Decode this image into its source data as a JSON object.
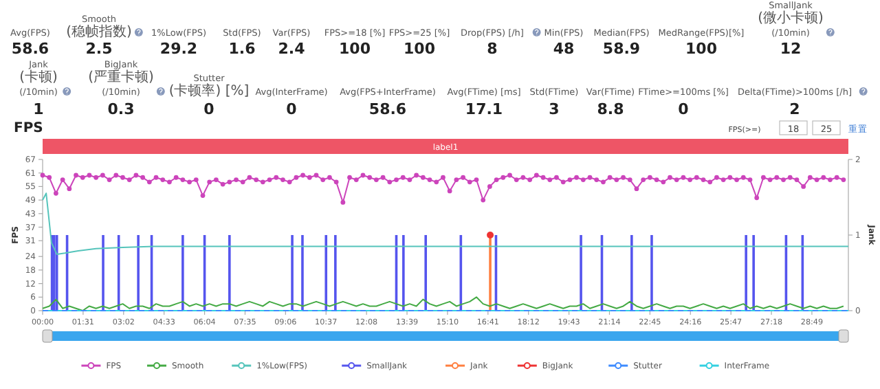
{
  "chart_data": [
    {
      "type": "other",
      "data_labels": true,
      "categories": [
        "Avg(FPS)",
        "Smooth(稳帧指数)",
        "1%Low(FPS)",
        "Std(FPS)",
        "Var(FPS)",
        "FPS>=18 [%]",
        "FPS>=25 [%]",
        "Drop(FPS) [/h]",
        "Min(FPS)",
        "Median(FPS)",
        "MedRange(FPS)[%]",
        "SmallJank(微小卡顿)\n(/10min)",
        "Jank(卡顿)\n(/10min)",
        "BigJank(严重卡顿)\n(/10min)",
        "Stutter(卡顿率) [%]",
        "Avg(InterFrame)",
        "Avg(FPS+InterFrame)",
        "Avg(FTime) [ms]",
        "Std(FTime)",
        "Var(FTime)",
        "FTime>=100ms [%]",
        "Delta(FTime)>100ms [/h]"
      ],
      "values": [
        58.6,
        2.5,
        29.2,
        1.6,
        2.4,
        100,
        100,
        8,
        48,
        58.9,
        100,
        12,
        1,
        0.3,
        0,
        0,
        58.6,
        17.1,
        3,
        8.8,
        0,
        2
      ]
    },
    {
      "type": "line",
      "title": "FPS",
      "ylabel": "FPS",
      "y2label": "Jank",
      "legend": "bottom",
      "annotations": [
        "label1",
        "FPS(>=)",
        "18",
        "25",
        "重置"
      ],
      "xlim": [
        0,
        1811
      ],
      "xticks": [
        {
          "value": 0,
          "label": "00:00"
        },
        {
          "value": 91,
          "label": "01:31"
        },
        {
          "value": 182,
          "label": "03:02"
        },
        {
          "value": 273,
          "label": "04:33"
        },
        {
          "value": 364,
          "label": "06:04"
        },
        {
          "value": 455,
          "label": "07:35"
        },
        {
          "value": 546,
          "label": "09:06"
        },
        {
          "value": 637,
          "label": "10:37"
        },
        {
          "value": 728,
          "label": "12:08"
        },
        {
          "value": 819,
          "label": "13:39"
        },
        {
          "value": 910,
          "label": "15:10"
        },
        {
          "value": 1001,
          "label": "16:41"
        },
        {
          "value": 1092,
          "label": "18:12"
        },
        {
          "value": 1183,
          "label": "19:43"
        },
        {
          "value": 1274,
          "label": "21:14"
        },
        {
          "value": 1365,
          "label": "22:45"
        },
        {
          "value": 1456,
          "label": "24:16"
        },
        {
          "value": 1547,
          "label": "25:47"
        },
        {
          "value": 1638,
          "label": "27:18"
        },
        {
          "value": 1729,
          "label": "28:49"
        }
      ],
      "ylim": [
        0,
        67
      ],
      "yticks": [
        0,
        6,
        12,
        18,
        24,
        31,
        37,
        43,
        49,
        55,
        61,
        67
      ],
      "y2lim": [
        0,
        2
      ],
      "y2ticks": [
        0,
        1,
        2
      ],
      "x": [
        0,
        15,
        30,
        45,
        60,
        75,
        90,
        105,
        120,
        135,
        150,
        165,
        180,
        195,
        210,
        225,
        240,
        255,
        270,
        285,
        300,
        315,
        330,
        345,
        360,
        375,
        390,
        405,
        420,
        435,
        450,
        465,
        480,
        495,
        510,
        525,
        540,
        555,
        570,
        585,
        600,
        615,
        630,
        645,
        660,
        675,
        690,
        705,
        720,
        735,
        750,
        765,
        780,
        795,
        810,
        825,
        840,
        855,
        870,
        885,
        900,
        915,
        930,
        945,
        960,
        975,
        990,
        1005,
        1020,
        1035,
        1050,
        1065,
        1080,
        1095,
        1110,
        1125,
        1140,
        1155,
        1170,
        1185,
        1200,
        1215,
        1230,
        1245,
        1260,
        1275,
        1290,
        1305,
        1320,
        1335,
        1350,
        1365,
        1380,
        1395,
        1410,
        1425,
        1440,
        1455,
        1470,
        1485,
        1500,
        1515,
        1530,
        1545,
        1560,
        1575,
        1590,
        1605,
        1620,
        1635,
        1650,
        1665,
        1680,
        1695,
        1710,
        1725,
        1740,
        1755,
        1770,
        1785,
        1800
      ],
      "series": [
        {
          "name": "FPS",
          "type": "line",
          "color": "#cc44bb",
          "marker": "circle",
          "values": [
            60,
            59,
            52,
            58,
            54,
            60,
            59,
            60,
            59,
            60,
            58,
            60,
            59,
            58,
            60,
            59,
            57,
            59,
            58,
            57,
            59,
            58,
            57,
            58,
            51,
            57,
            58,
            56,
            57,
            58,
            57,
            59,
            58,
            57,
            58,
            59,
            58,
            57,
            59,
            60,
            59,
            60,
            58,
            59,
            57,
            48,
            59,
            58,
            60,
            59,
            58,
            59,
            57,
            58,
            59,
            58,
            60,
            59,
            58,
            57,
            59,
            53,
            58,
            59,
            57,
            58,
            49,
            55,
            58,
            59,
            60,
            58,
            59,
            58,
            60,
            59,
            58,
            59,
            57,
            58,
            59,
            58,
            59,
            58,
            57,
            59,
            58,
            59,
            58,
            54,
            58,
            59,
            58,
            57,
            59,
            58,
            59,
            58,
            59,
            58,
            57,
            59,
            58,
            59,
            58,
            59,
            58,
            50,
            59,
            58,
            59,
            58,
            59,
            58,
            55,
            59,
            58,
            59,
            58,
            59,
            58
          ]
        },
        {
          "name": "Smooth",
          "type": "line",
          "color": "#44aa44",
          "values": [
            1,
            2,
            5,
            1,
            2,
            1,
            0,
            2,
            1,
            2,
            1,
            2,
            3,
            1,
            2,
            2,
            1,
            3,
            2,
            2,
            3,
            4,
            2,
            3,
            2,
            3,
            2,
            3,
            3,
            2,
            3,
            4,
            3,
            2,
            4,
            3,
            2,
            3,
            3,
            2,
            3,
            4,
            3,
            2,
            3,
            4,
            3,
            2,
            3,
            2,
            2,
            3,
            4,
            3,
            2,
            3,
            2,
            5,
            3,
            2,
            3,
            4,
            2,
            3,
            4,
            6,
            3,
            2,
            3,
            2,
            1,
            2,
            3,
            2,
            1,
            2,
            3,
            2,
            1,
            2,
            2,
            3,
            1,
            2,
            3,
            2,
            1,
            2,
            4,
            2,
            1,
            2,
            3,
            2,
            1,
            2,
            2,
            1,
            2,
            3,
            2,
            1,
            2,
            1,
            2,
            3,
            1,
            2,
            1,
            2,
            1,
            2,
            3,
            2,
            1,
            2,
            1,
            2,
            1,
            1,
            2
          ]
        },
        {
          "name": "1%Low(FPS)",
          "type": "line",
          "color": "#55c4bb",
          "x": [
            0,
            8,
            20,
            32,
            50,
            80,
            120,
            180,
            250,
            350,
            500,
            800,
            1200,
            1811
          ],
          "values": [
            49,
            52,
            30,
            25,
            25.5,
            26.5,
            27.5,
            28,
            28.5,
            28.5,
            28.5,
            28.5,
            28.5,
            28.5
          ]
        },
        {
          "name": "SmallJank",
          "type": "bar",
          "axis": "y2",
          "color": "#5555ee",
          "x": [
            21,
            26,
            32,
            55,
            136,
            171,
            215,
            245,
            315,
            364,
            420,
            561,
            584,
            637,
            658,
            795,
            811,
            861,
            940,
            1019,
            1210,
            1257,
            1324,
            1369,
            1581,
            1598,
            1671,
            1708
          ],
          "values": [
            1,
            1,
            1,
            1,
            1,
            1,
            1,
            1,
            1,
            1,
            1,
            1,
            1,
            1,
            1,
            1,
            1,
            1,
            1,
            1,
            1,
            1,
            1,
            1,
            1,
            1,
            1,
            1
          ]
        },
        {
          "name": "Jank",
          "type": "bar",
          "axis": "y2",
          "color": "#ff7f3f",
          "x": [
            1006
          ],
          "values": [
            1
          ]
        },
        {
          "name": "BigJank",
          "type": "scatter",
          "axis": "y2",
          "color": "#ee3333",
          "marker": "circle",
          "x": [
            1006
          ],
          "values": [
            1
          ]
        },
        {
          "name": "Stutter",
          "type": "line",
          "axis": "y2",
          "color": "#3d8bff",
          "line_style": "dashed",
          "x": [
            0,
            1811
          ],
          "values": [
            0,
            0
          ]
        },
        {
          "name": "InterFrame",
          "type": "line",
          "color": "#33d0e0",
          "x": [
            0,
            1811
          ],
          "values": [
            0,
            0
          ]
        }
      ]
    }
  ]
}
